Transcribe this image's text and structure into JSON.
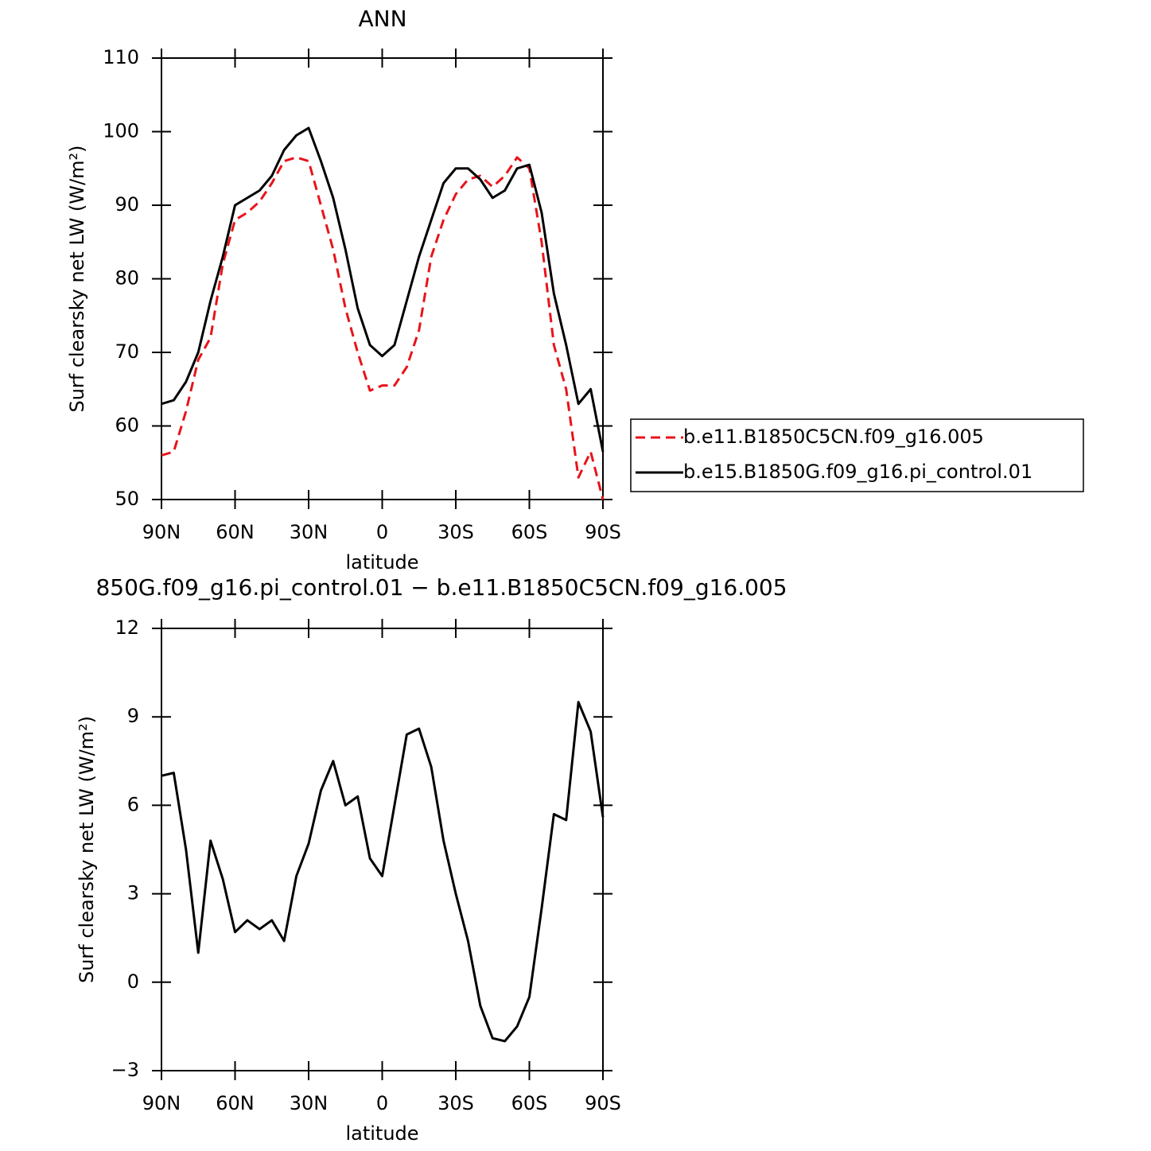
{
  "chart_data": [
    {
      "type": "line",
      "title": "ANN",
      "x_label": "latitude",
      "y_label": "Surf clearsky net LW (W/m²)",
      "x": [
        90,
        85,
        80,
        75,
        70,
        65,
        60,
        55,
        50,
        45,
        40,
        35,
        30,
        25,
        20,
        15,
        10,
        5,
        0,
        -5,
        -10,
        -15,
        -20,
        -25,
        -30,
        -35,
        -40,
        -45,
        -50,
        -55,
        -60,
        -65,
        -70,
        -75,
        -80,
        -85,
        -90
      ],
      "xlim": [
        90,
        -90
      ],
      "xticks": [
        {
          "value": 90,
          "label": "90N"
        },
        {
          "value": 60,
          "label": "60N"
        },
        {
          "value": 30,
          "label": "30N"
        },
        0,
        {
          "value": -30,
          "label": "30S"
        },
        {
          "value": -60,
          "label": "60S"
        },
        {
          "value": -90,
          "label": "90S"
        }
      ],
      "ylim": [
        50,
        110
      ],
      "yticks": [
        50,
        60,
        70,
        80,
        90,
        100,
        110
      ],
      "legend": "right",
      "series": [
        {
          "name": "b.e11.B1850C5CN.f09_g16.005",
          "color": "#e8141a",
          "dashed": true,
          "values": [
            56,
            56.5,
            62,
            69,
            72,
            82,
            88,
            89,
            90.5,
            93,
            96,
            96.5,
            96,
            90,
            84,
            76,
            70,
            64.8,
            65.5,
            65.5,
            68,
            73,
            83,
            88,
            91.5,
            93.5,
            94,
            92.5,
            94,
            96.5,
            95,
            85,
            71,
            65,
            53,
            56.5,
            50
          ]
        },
        {
          "name": "b.e15.B1850G.f09_g16.pi_control.01",
          "color": "#000000",
          "dashed": false,
          "values": [
            63,
            63.5,
            66,
            70,
            77,
            83,
            90,
            91,
            92,
            94,
            97.5,
            99.5,
            100.5,
            96,
            91,
            84,
            76,
            71,
            69.5,
            71,
            77,
            83,
            88,
            93,
            95,
            95,
            93.5,
            91,
            92,
            95,
            95.5,
            89,
            78,
            71,
            63,
            65,
            56.5
          ]
        }
      ]
    },
    {
      "type": "line",
      "title": "850G.f09_g16.pi_control.01 − b.e11.B1850C5CN.f09_g16.005",
      "x_label": "latitude",
      "y_label": "Surf clearsky net LW (W/m²)",
      "x": [
        90,
        85,
        80,
        75,
        70,
        65,
        60,
        55,
        50,
        45,
        40,
        35,
        30,
        25,
        20,
        15,
        10,
        5,
        0,
        -5,
        -10,
        -15,
        -20,
        -25,
        -30,
        -35,
        -40,
        -45,
        -50,
        -55,
        -60,
        -65,
        -70,
        -75,
        -80,
        -85,
        -90
      ],
      "xlim": [
        90,
        -90
      ],
      "xticks": [
        {
          "value": 90,
          "label": "90N"
        },
        {
          "value": 60,
          "label": "60N"
        },
        {
          "value": 30,
          "label": "30N"
        },
        0,
        {
          "value": -30,
          "label": "30S"
        },
        {
          "value": -60,
          "label": "60S"
        },
        {
          "value": -90,
          "label": "90S"
        }
      ],
      "ylim": [
        -3,
        12
      ],
      "yticks": [
        {
          "value": -3,
          "label": "−3"
        },
        0,
        3,
        6,
        9,
        12
      ],
      "series": [
        {
          "color": "#000000",
          "dashed": false,
          "values": [
            7,
            7.1,
            4.5,
            1,
            4.8,
            3.5,
            1.7,
            2.1,
            1.8,
            2.1,
            1.4,
            3.6,
            4.7,
            6.5,
            7.5,
            6,
            6.3,
            4.2,
            3.6,
            6,
            8.4,
            8.6,
            7.3,
            4.8,
            3,
            1.4,
            -0.8,
            -1.9,
            -2,
            -1.5,
            -0.5,
            2.5,
            5.7,
            5.5,
            9.5,
            8.5,
            5.6
          ]
        }
      ]
    }
  ]
}
